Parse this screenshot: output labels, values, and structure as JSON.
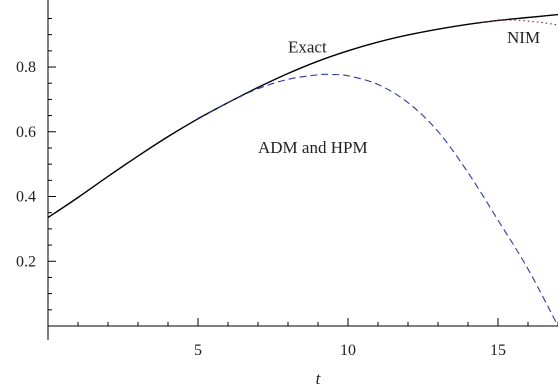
{
  "chart_data": {
    "type": "line",
    "title": "",
    "xlabel": "t",
    "ylabel": "",
    "xlim": [
      0,
      17
    ],
    "ylim": [
      0,
      0.97
    ],
    "grid": false,
    "x_ticks": [
      5,
      10,
      15
    ],
    "x_tick_labels": [
      "5",
      "10",
      "15"
    ],
    "y_ticks": [
      0.2,
      0.4,
      0.6,
      0.8
    ],
    "y_tick_labels": [
      "0.2",
      "0.4",
      "0.6",
      "0.8"
    ],
    "series": [
      {
        "name": "Exact",
        "color": "#000000",
        "style": "solid",
        "x": [
          0,
          1,
          2,
          3,
          4,
          5,
          6,
          7,
          8,
          9,
          10,
          11,
          12,
          13,
          14,
          15,
          16,
          17
        ],
        "y": [
          0.335,
          0.397,
          0.462,
          0.525,
          0.585,
          0.64,
          0.69,
          0.737,
          0.78,
          0.818,
          0.85,
          0.877,
          0.899,
          0.917,
          0.932,
          0.944,
          0.953,
          0.962
        ]
      },
      {
        "name": "NIM",
        "color": "#8e1c4a",
        "style": "dotted",
        "x": [
          14.5,
          15,
          15.5,
          16,
          16.5,
          17
        ],
        "y": [
          0.938,
          0.944,
          0.945,
          0.942,
          0.937,
          0.93
        ]
      },
      {
        "name": "ADM and HPM",
        "color": "#2b3a9e",
        "style": "dashed",
        "x": [
          5,
          6,
          7,
          8,
          9,
          9.4,
          10,
          11,
          12,
          13,
          14,
          15,
          16,
          17
        ],
        "y": [
          0.642,
          0.69,
          0.733,
          0.762,
          0.776,
          0.777,
          0.773,
          0.746,
          0.69,
          0.601,
          0.474,
          0.327,
          0.176,
          0.0
        ]
      }
    ],
    "annotations": [
      {
        "text": "Exact",
        "x": 8.0,
        "y": 0.845
      },
      {
        "text": "NIM",
        "x": 15.3,
        "y": 0.875
      },
      {
        "text": "ADM and HPM",
        "x": 7.0,
        "y": 0.535
      }
    ]
  }
}
